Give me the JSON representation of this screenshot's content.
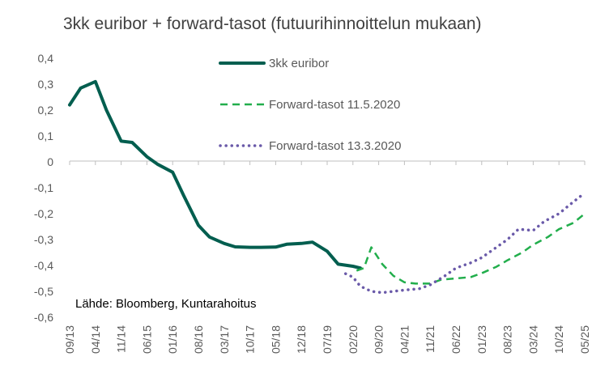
{
  "chart_data": {
    "type": "line",
    "title": "3kk euribor + forward-tasot (futuurihinnoittelun mukaan)",
    "source": "Lähde: Bloomberg, Kuntarahoitus",
    "ylim": [
      -0.6,
      0.4
    ],
    "y_ticks": [
      "0,4",
      "0,3",
      "0,2",
      "0,1",
      "0",
      "-0,1",
      "-0,2",
      "-0,3",
      "-0,4",
      "-0,5",
      "-0,6"
    ],
    "x_tick_labels": [
      "09/13",
      "04/14",
      "11/14",
      "06/15",
      "01/16",
      "08/16",
      "03/17",
      "10/17",
      "05/18",
      "12/18",
      "07/19",
      "02/20",
      "09/20",
      "04/21",
      "11/21",
      "06/22",
      "01/23",
      "08/23",
      "03/24",
      "10/24",
      "05/25"
    ],
    "legend_position": "top-center",
    "grid": false,
    "series": [
      {
        "name": "3kk euribor",
        "style": "solid",
        "color": "#035E4F",
        "x": [
          "09/13",
          "12/13",
          "04/14",
          "07/14",
          "11/14",
          "02/15",
          "06/15",
          "09/15",
          "01/16",
          "04/16",
          "08/16",
          "11/16",
          "03/17",
          "06/17",
          "10/17",
          "01/18",
          "05/18",
          "08/18",
          "12/18",
          "03/19",
          "07/19",
          "10/19",
          "02/20",
          "04/20"
        ],
        "values": [
          0.22,
          0.285,
          0.31,
          0.2,
          0.08,
          0.075,
          0.02,
          -0.01,
          -0.04,
          -0.13,
          -0.245,
          -0.29,
          -0.315,
          -0.328,
          -0.33,
          -0.33,
          -0.329,
          -0.318,
          -0.315,
          -0.31,
          -0.345,
          -0.395,
          -0.403,
          -0.41
        ]
      },
      {
        "name": "Forward-tasot 11.5.2020",
        "style": "dashed",
        "color": "#22AE4C",
        "x": [
          "03/20",
          "05/20",
          "07/20",
          "10/20",
          "01/21",
          "04/21",
          "07/21",
          "11/21",
          "02/22",
          "06/22",
          "10/22",
          "01/23",
          "05/23",
          "08/23",
          "12/23",
          "03/24",
          "07/24",
          "10/24",
          "02/25",
          "05/25"
        ],
        "values": [
          -0.42,
          -0.41,
          -0.33,
          -0.395,
          -0.44,
          -0.465,
          -0.47,
          -0.47,
          -0.455,
          -0.45,
          -0.445,
          -0.43,
          -0.405,
          -0.38,
          -0.35,
          -0.32,
          -0.29,
          -0.26,
          -0.235,
          -0.2
        ]
      },
      {
        "name": "Forward-tasot 13.3.2020",
        "style": "dotted",
        "color": "#6A5AA9",
        "x": [
          "12/19",
          "02/20",
          "04/20",
          "07/20",
          "10/20",
          "01/21",
          "04/21",
          "08/21",
          "11/21",
          "03/22",
          "06/22",
          "10/22",
          "01/23",
          "04/23",
          "08/23",
          "11/23",
          "03/24",
          "06/24",
          "10/24",
          "01/25",
          "05/25"
        ],
        "values": [
          -0.432,
          -0.445,
          -0.48,
          -0.5,
          -0.505,
          -0.5,
          -0.495,
          -0.49,
          -0.475,
          -0.44,
          -0.41,
          -0.39,
          -0.37,
          -0.34,
          -0.3,
          -0.26,
          -0.265,
          -0.23,
          -0.2,
          -0.165,
          -0.12
        ]
      }
    ]
  }
}
